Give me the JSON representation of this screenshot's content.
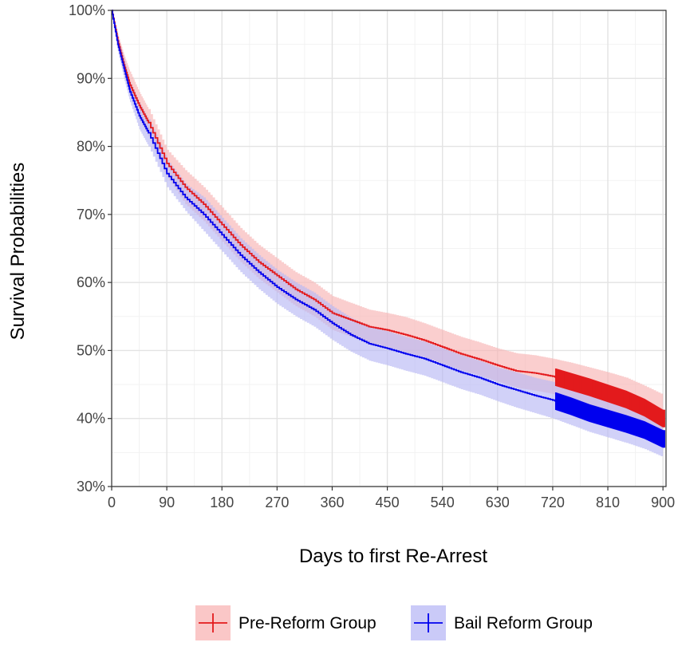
{
  "chart_data": {
    "type": "line",
    "title": "",
    "xlabel": "Days to first Re-Arrest",
    "ylabel": "Survival Probabilities",
    "xlim": [
      0,
      905
    ],
    "ylim": [
      30,
      100
    ],
    "x_ticks": [
      0,
      90,
      180,
      270,
      360,
      450,
      540,
      630,
      720,
      810,
      900
    ],
    "x_tick_labels": [
      "0",
      "90",
      "180",
      "270",
      "360",
      "450",
      "540",
      "630",
      "720",
      "810",
      "900"
    ],
    "y_ticks": [
      30,
      40,
      50,
      60,
      70,
      80,
      90,
      100
    ],
    "y_tick_labels": [
      "30%",
      "40%",
      "50%",
      "60%",
      "70%",
      "80%",
      "90%",
      "100%"
    ],
    "grid": true,
    "legend_position": "bottom",
    "series": [
      {
        "name": "Pre-Reform Group",
        "color": "#e31a1c",
        "band_color": "#f8b4b4",
        "x": [
          0,
          10,
          20,
          30,
          45,
          60,
          90,
          120,
          150,
          180,
          210,
          240,
          270,
          300,
          330,
          360,
          390,
          420,
          450,
          480,
          510,
          540,
          570,
          600,
          630,
          660,
          690,
          720,
          750,
          780,
          810,
          840,
          870,
          900
        ],
        "y": [
          100,
          95.5,
          92,
          89,
          86,
          83.5,
          77.5,
          74,
          71.5,
          68.5,
          65.5,
          63,
          61,
          59,
          57.5,
          55.5,
          54.5,
          53.5,
          53,
          52.3,
          51.5,
          50.5,
          49.5,
          48.7,
          47.8,
          47,
          46.7,
          46.2,
          45.4,
          44.6,
          43.7,
          42.8,
          41.6,
          40
        ],
        "lower": [
          100,
          94.5,
          90.5,
          87.5,
          84,
          81.5,
          75.5,
          71.5,
          69,
          66,
          63,
          60.5,
          58.5,
          56.5,
          55,
          53,
          52,
          51,
          50.5,
          49.7,
          49,
          48,
          47.1,
          46.3,
          45.4,
          44.5,
          44.1,
          43.6,
          42.5,
          41.6,
          40.6,
          39.6,
          38.4,
          36.5
        ],
        "upper": [
          100,
          96.5,
          93.5,
          91,
          88,
          85.5,
          79.5,
          76.5,
          74,
          71,
          68,
          65.5,
          63.5,
          61.5,
          60,
          58,
          57,
          56,
          55.5,
          54.9,
          54,
          53,
          52,
          51.2,
          50.3,
          49.6,
          49.3,
          48.8,
          48.2,
          47.5,
          46.8,
          46,
          44.8,
          43.5
        ]
      },
      {
        "name": "Bail Reform Group",
        "color": "#0000ee",
        "band_color": "#b8b8f5",
        "x": [
          0,
          10,
          20,
          30,
          45,
          60,
          90,
          120,
          150,
          180,
          210,
          240,
          270,
          300,
          330,
          360,
          390,
          420,
          450,
          480,
          510,
          540,
          570,
          600,
          630,
          660,
          690,
          720,
          750,
          780,
          810,
          840,
          870,
          900
        ],
        "y": [
          100,
          95,
          91.5,
          88,
          84.5,
          82,
          76,
          72.5,
          70,
          67,
          64,
          61.5,
          59.3,
          57.5,
          56,
          54,
          52.3,
          51,
          50.3,
          49.5,
          48.8,
          47.8,
          46.8,
          46,
          45,
          44.2,
          43.4,
          42.7,
          41.8,
          40.8,
          40,
          39.2,
          38.3,
          37
        ],
        "lower": [
          100,
          94,
          90,
          86.5,
          82.5,
          80,
          74,
          70.5,
          67.5,
          64.5,
          61.5,
          59,
          56.8,
          55,
          53.5,
          51.5,
          49.8,
          48.5,
          47.8,
          47,
          46.3,
          45.3,
          44.3,
          43.5,
          42.5,
          41.6,
          40.8,
          40,
          39,
          38,
          37.2,
          36.4,
          35.5,
          34.3
        ],
        "upper": [
          100,
          96,
          93,
          89.5,
          86.5,
          84,
          78,
          74.5,
          72.5,
          69.5,
          66.5,
          64,
          61.8,
          60,
          58.5,
          56.5,
          54.8,
          53.5,
          52.8,
          52,
          51.3,
          50.3,
          49.3,
          48.5,
          47.5,
          46.8,
          46,
          45.4,
          44.6,
          43.6,
          42.8,
          42,
          41.1,
          39.8
        ]
      }
    ],
    "censor_marks": {
      "from_x": 725,
      "to_x": 903
    }
  }
}
